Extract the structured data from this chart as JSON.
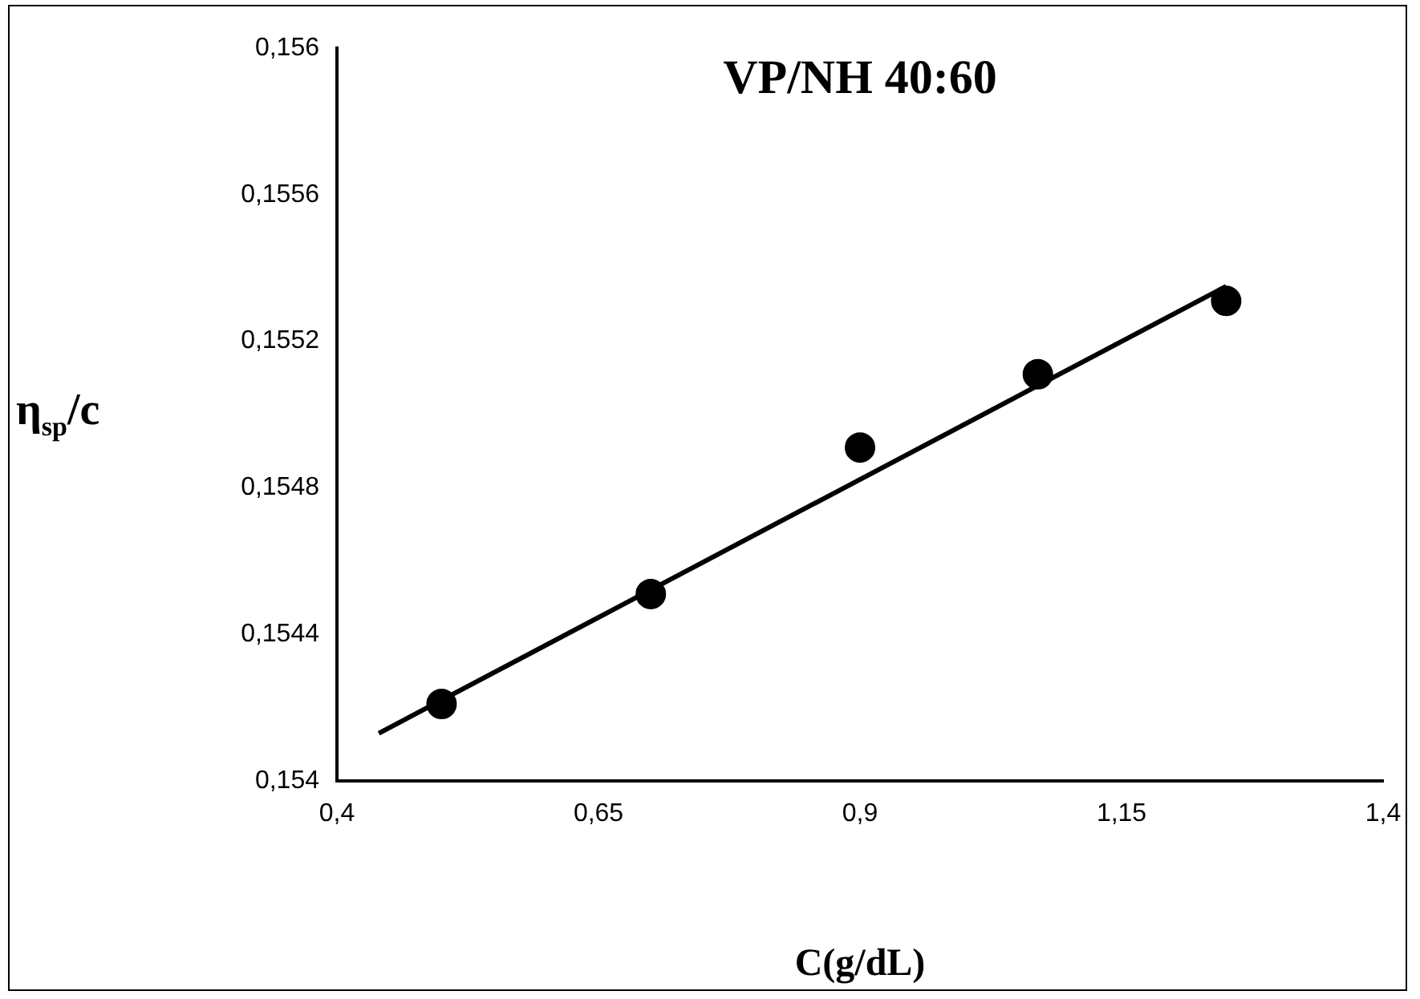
{
  "chart_data": {
    "type": "scatter",
    "title": "VP/NH 40:60",
    "xlabel": "C(g/dL)",
    "ylabel": "η$_{sp}$/c",
    "xlim": [
      0.4,
      1.4
    ],
    "xticks": [
      {
        "value": 0.4,
        "label": "0,4"
      },
      {
        "value": 0.65,
        "label": "0,65"
      },
      {
        "value": 0.9,
        "label": "0,9"
      },
      {
        "value": 1.15,
        "label": "1,15"
      },
      {
        "value": 1.4,
        "label": "1,4"
      }
    ],
    "ylim": [
      0.154,
      0.156
    ],
    "yticks": [
      {
        "value": 0.154,
        "label": "0,154"
      },
      {
        "value": 0.1544,
        "label": "0,1544"
      },
      {
        "value": 0.1548,
        "label": "0,1548"
      },
      {
        "value": 0.1552,
        "label": "0,1552"
      },
      {
        "value": 0.1556,
        "label": "0,1556"
      },
      {
        "value": 0.156,
        "label": "0,156"
      }
    ],
    "grid": false,
    "legend": false,
    "marker": "circle",
    "series": [
      {
        "type": "scatter",
        "color": "#000000",
        "x": [
          0.5,
          0.7,
          0.9,
          1.07,
          1.25
        ],
        "values": [
          0.15421,
          0.15451,
          0.15491,
          0.15511,
          0.15531
        ]
      },
      {
        "type": "line",
        "color": "#000000",
        "line_style": "solid",
        "marker": "none",
        "x": [
          0.44,
          1.25
        ],
        "values": [
          0.15413,
          0.15535
        ]
      }
    ]
  }
}
